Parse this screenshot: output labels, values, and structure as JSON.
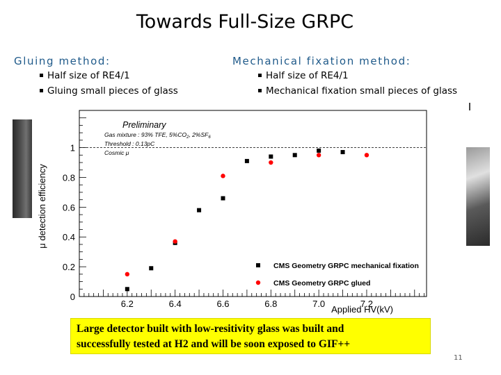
{
  "slide": {
    "title": "Towards Full-Size GRPC",
    "number": "11"
  },
  "left_column": {
    "heading": "Gluing method:",
    "bullets": [
      "Half size of RE4/1",
      "Gluing small pieces of glass"
    ]
  },
  "right_column": {
    "heading": "Mechanical fixation method:",
    "bullets": [
      "Half size of RE4/1",
      "Mechanical fixation small pieces of glass"
    ]
  },
  "note": {
    "line1": "Large detector built with low-resitivity glass was built and",
    "line2": "successfully tested at H2 and will be soon exposed to GIF++"
  },
  "chart_data": {
    "type": "scatter",
    "xlabel": "Applied HV(kV)",
    "ylabel": "μ detection efficiency",
    "xlim": [
      6.0,
      7.45
    ],
    "ylim": [
      0,
      1.25
    ],
    "xticks": [
      6.2,
      6.4,
      6.6,
      6.8,
      7.0,
      7.2
    ],
    "yticks": [
      0,
      0.2,
      0.4,
      0.6,
      0.8,
      1
    ],
    "reference_line": 1.0,
    "annotations": {
      "preliminary": "Preliminary",
      "gas": "Gas mixture : 93% TFE, 5%CO",
      "gas_sub1": "2",
      "gas_mid": ", 2%SF",
      "gas_sub2": "6",
      "threshold": "Threshold : 0.13pC",
      "cosmic": "Cosmic μ"
    },
    "legend_position": "bottom-right",
    "series": [
      {
        "name": "CMS Geometry GRPC mechanical fixation",
        "marker": "square",
        "color": "#000000",
        "x": [
          6.2,
          6.3,
          6.4,
          6.5,
          6.6,
          6.7,
          6.8,
          6.9,
          7.0,
          7.1
        ],
        "y": [
          0.05,
          0.19,
          0.36,
          0.58,
          0.66,
          0.91,
          0.94,
          0.95,
          0.98,
          0.97
        ]
      },
      {
        "name": "CMS Geometry GRPC glued",
        "marker": "circle",
        "color": "#ff0000",
        "x": [
          6.2,
          6.4,
          6.6,
          6.8,
          7.0,
          7.2
        ],
        "y": [
          0.15,
          0.37,
          0.81,
          0.9,
          0.95,
          0.95
        ]
      }
    ]
  }
}
